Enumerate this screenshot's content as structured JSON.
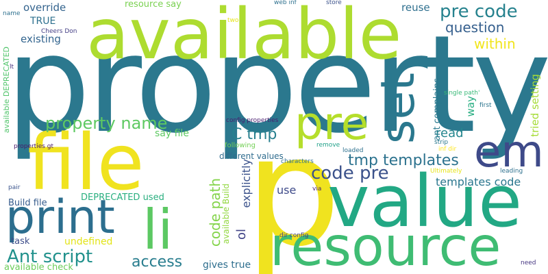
{
  "words": [
    {
      "text": "property",
      "color": "#2b788e"
    },
    {
      "text": "available",
      "color": "#addc30"
    },
    {
      "text": "file",
      "color": "#f0e31f"
    },
    {
      "text": "p",
      "color": "#f0e31f"
    },
    {
      "text": "value",
      "color": "#22a884"
    },
    {
      "text": "print",
      "color": "#2c6e8e"
    },
    {
      "text": "resource",
      "color": "#3fbc73"
    },
    {
      "text": "li",
      "color": "#5cc863"
    },
    {
      "text": "em",
      "color": "#3e4a89"
    },
    {
      "text": "pre",
      "color": "#b5de2b"
    },
    {
      "text": "set",
      "color": "#2a788e"
    },
    {
      "text": "pre code",
      "color": "#26828e"
    },
    {
      "text": "property name",
      "color": "#5ec962"
    },
    {
      "text": "code pre",
      "color": "#3b528b"
    },
    {
      "text": "tmp templates",
      "color": "#2c728e"
    },
    {
      "text": "Ant script",
      "color": "#21918c"
    },
    {
      "text": "access",
      "color": "#287d8e"
    },
    {
      "text": "question",
      "color": "#355f8d"
    },
    {
      "text": "within",
      "color": "#f1e51d"
    },
    {
      "text": "C tmp",
      "color": "#277f8e"
    },
    {
      "text": "templates code",
      "color": "#2a768e"
    },
    {
      "text": "read",
      "color": "#24868e"
    },
    {
      "text": "code path",
      "color": "#84d44b"
    },
    {
      "text": "explicitly",
      "color": "#3b528b"
    },
    {
      "text": "ol",
      "color": "#414487"
    },
    {
      "text": "use",
      "color": "#3e4a89"
    },
    {
      "text": "override",
      "color": "#33638d"
    },
    {
      "text": "resource say",
      "color": "#7ad151"
    },
    {
      "text": "reuse",
      "color": "#2e6f8e"
    },
    {
      "text": "existing",
      "color": "#32648e"
    },
    {
      "text": "TRUE",
      "color": "#2d708e"
    },
    {
      "text": "say file",
      "color": "#5ec962"
    },
    {
      "text": "way",
      "color": "#27ad81"
    },
    {
      "text": "tried setting",
      "color": "#a5db36"
    },
    {
      "text": "ant complains",
      "color": "#29798e"
    },
    {
      "text": "Build file",
      "color": "#365c8d"
    },
    {
      "text": "DEPRECATED used",
      "color": "#29af7f"
    },
    {
      "text": "undefined",
      "color": "#e2e418"
    },
    {
      "text": "task",
      "color": "#3d4d8a"
    },
    {
      "text": "gives true",
      "color": "#2e6e8e"
    },
    {
      "text": "available check",
      "color": "#6ccd5a"
    },
    {
      "text": "available Build",
      "color": "#93d741"
    },
    {
      "text": "available DEPRECATED",
      "color": "#50c46a"
    },
    {
      "text": "different values",
      "color": "#2f6c8e"
    },
    {
      "text": "config properties",
      "color": "#481d6f"
    },
    {
      "text": "following",
      "color": "#73d056"
    },
    {
      "text": "loaded",
      "color": "#2d708e"
    },
    {
      "text": "characters",
      "color": "#2d708e"
    },
    {
      "text": "remove",
      "color": "#1fa088"
    },
    {
      "text": "strip",
      "color": "#2a788e"
    },
    {
      "text": "inf dir",
      "color": "#fde725"
    },
    {
      "text": "Ultimately",
      "color": "#e7e419"
    },
    {
      "text": "leading",
      "color": "#2d708e"
    },
    {
      "text": "first",
      "color": "#2b748e"
    },
    {
      "text": "single path'",
      "color": "#38b977"
    },
    {
      "text": "dir config",
      "color": "#423f85"
    },
    {
      "text": "via",
      "color": "#481d6f"
    },
    {
      "text": "pair",
      "color": "#3a548c"
    },
    {
      "text": "properties gt",
      "color": "#48186a"
    },
    {
      "text": "Cheers Don",
      "color": "#433d84"
    },
    {
      "text": "name",
      "color": "#2d708e"
    },
    {
      "text": "lt",
      "color": "#46307e"
    },
    {
      "text": "two",
      "color": "#e5e419"
    },
    {
      "text": "web inf",
      "color": "#2d708e"
    },
    {
      "text": "store",
      "color": "#3b528b"
    },
    {
      "text": "need",
      "color": "#453581"
    }
  ]
}
